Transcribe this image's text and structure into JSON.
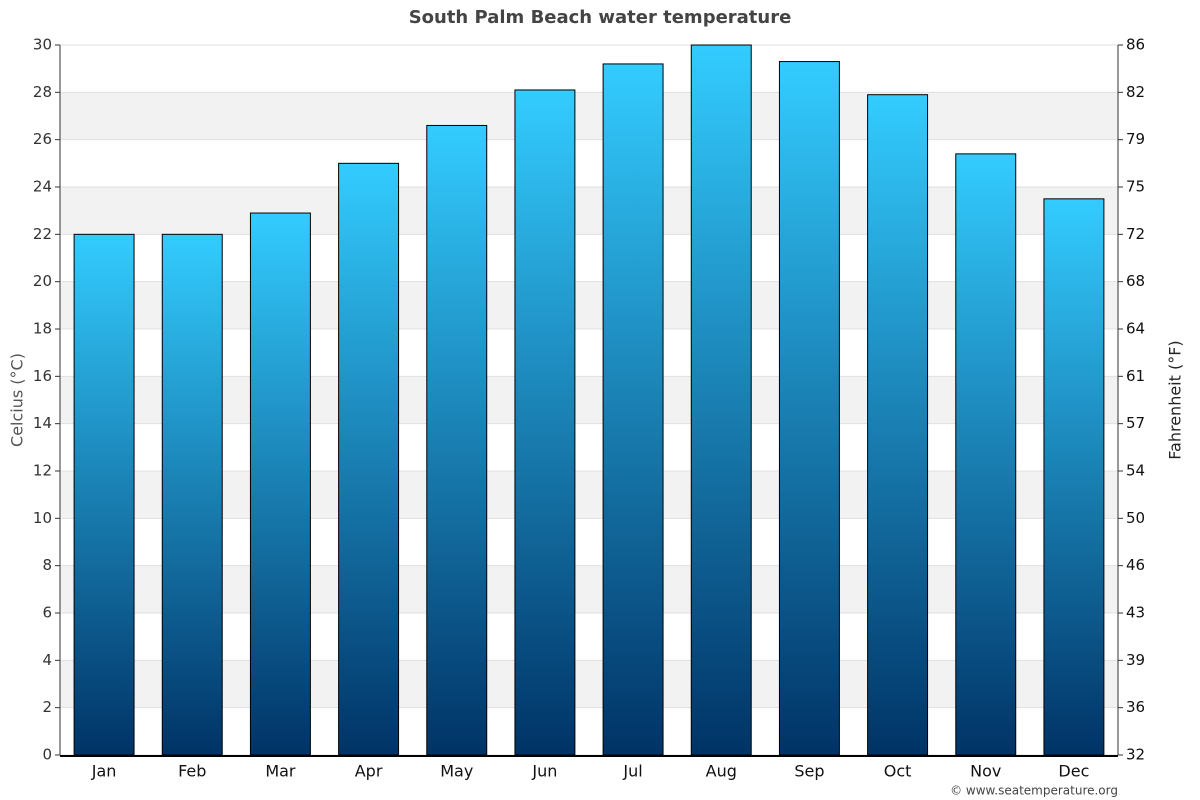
{
  "chart_data": {
    "type": "bar",
    "title": "South Palm Beach water temperature",
    "y_label": "Celcius (°C)",
    "y2_label": "Fahrenheit (°F)",
    "categories": [
      "Jan",
      "Feb",
      "Mar",
      "Apr",
      "May",
      "Jun",
      "Jul",
      "Aug",
      "Sep",
      "Oct",
      "Nov",
      "Dec"
    ],
    "values": [
      22,
      22,
      22.9,
      25,
      26.6,
      28.1,
      29.2,
      30,
      29.3,
      27.9,
      25.4,
      23.5
    ],
    "color": [
      "#33ccff",
      "#003366"
    ],
    "ylim": [
      0,
      30
    ],
    "yticks": [
      0,
      2,
      4,
      6,
      8,
      10,
      12,
      14,
      16,
      18,
      20,
      22,
      24,
      26,
      28,
      30
    ],
    "y2lim": [
      32,
      86
    ],
    "y2ticks": [
      32,
      {
        "value": 35.6,
        "label": "36"
      },
      {
        "value": 39.2,
        "label": "39"
      },
      {
        "value": 42.8,
        "label": "43"
      },
      {
        "value": 46.4,
        "label": "46"
      },
      50,
      {
        "value": 53.6,
        "label": "54"
      },
      {
        "value": 57.2,
        "label": "57"
      },
      {
        "value": 60.8,
        "label": "61"
      },
      {
        "value": 64.4,
        "label": "64"
      },
      68,
      {
        "value": 71.6,
        "label": "72"
      },
      {
        "value": 75.2,
        "label": "75"
      },
      {
        "value": 78.8,
        "label": "79"
      },
      {
        "value": 82.4,
        "label": "82"
      },
      86
    ],
    "grid": true,
    "credit": "© www.seatemperature.org"
  }
}
